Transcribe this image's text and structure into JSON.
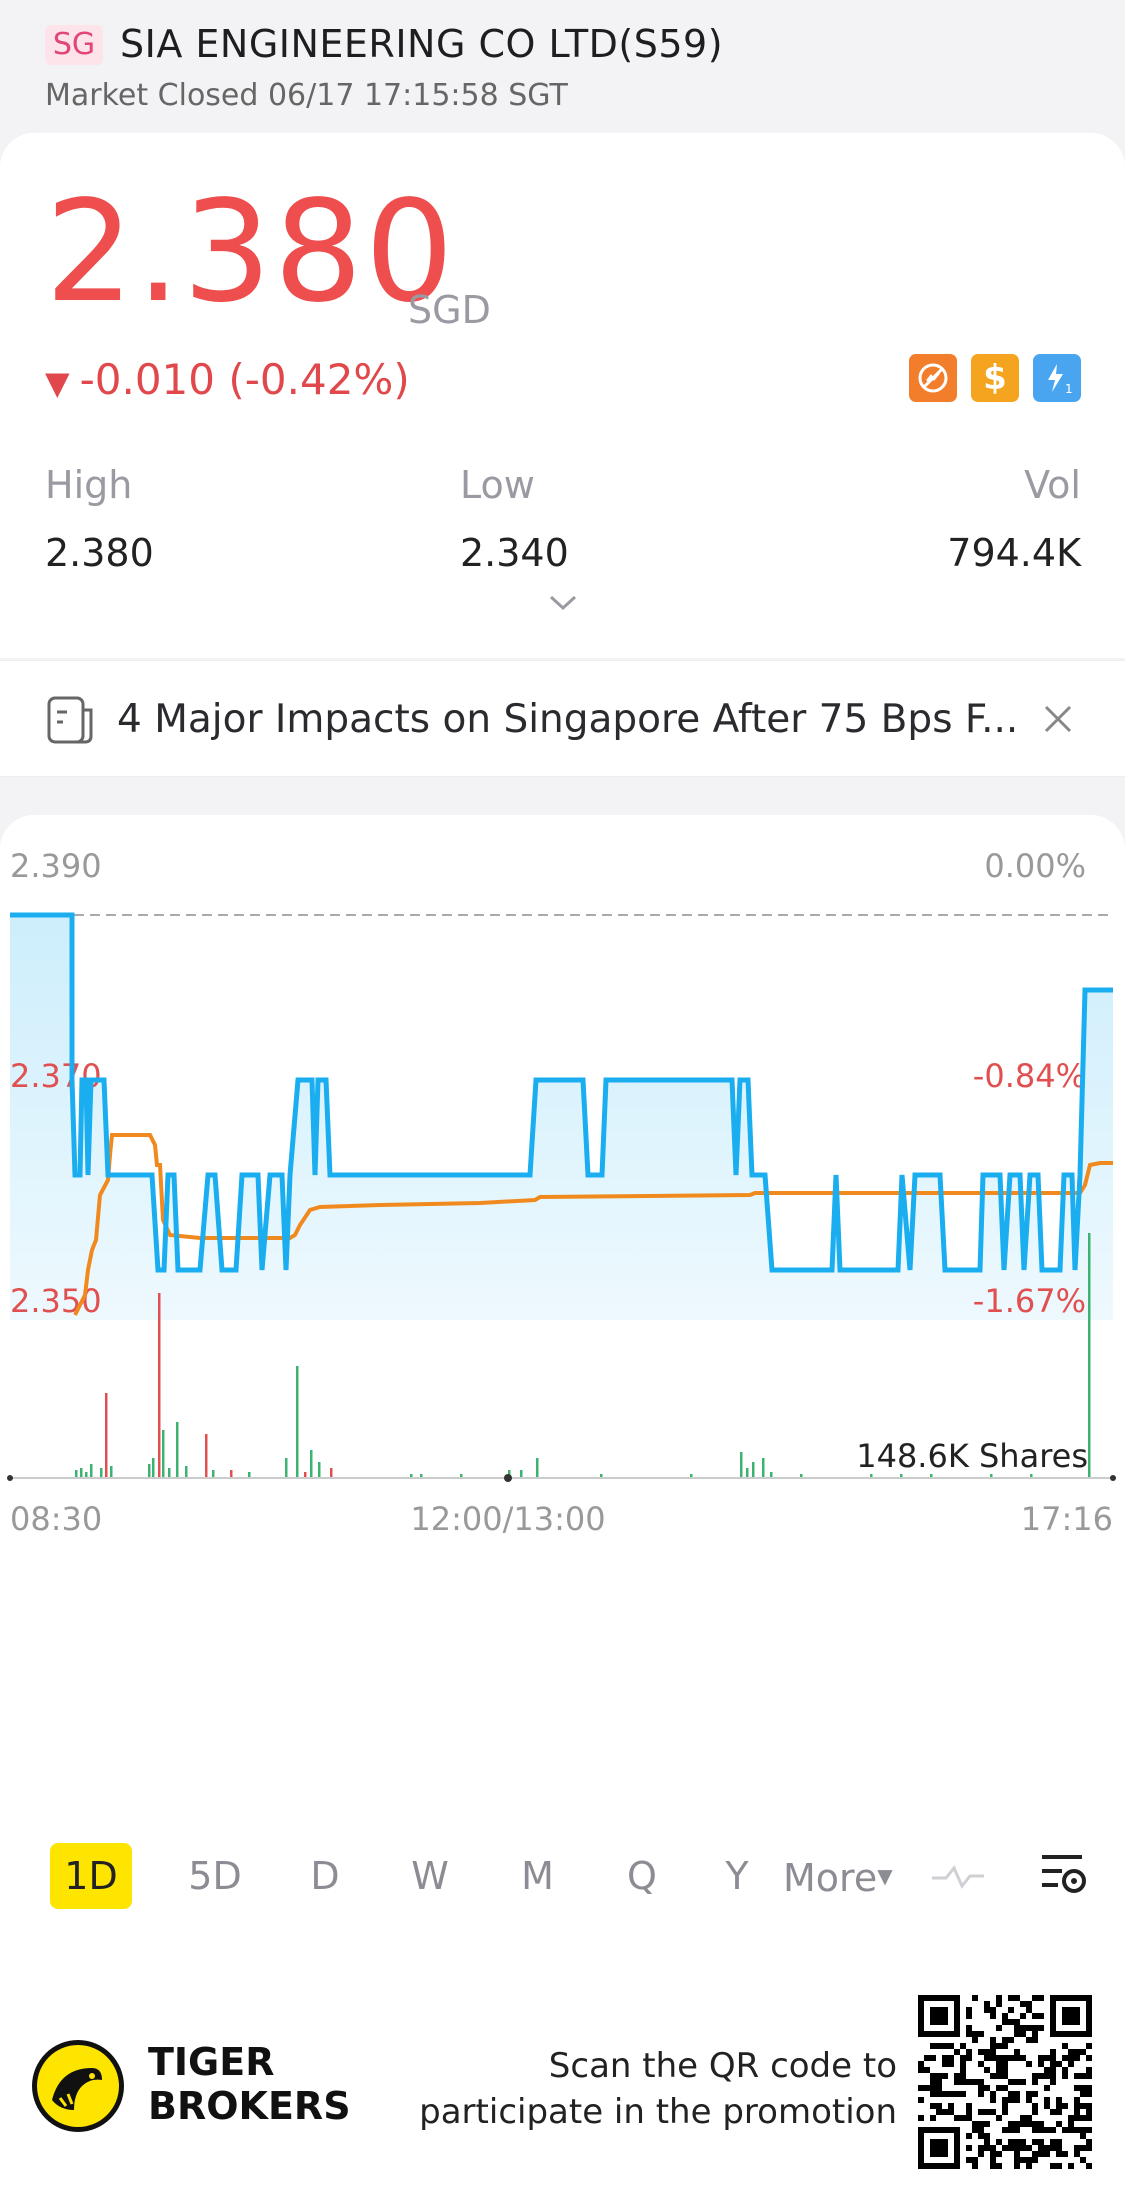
{
  "header": {
    "exchange_badge": "SG",
    "title": "SIA ENGINEERING CO LTD(S59)",
    "status": "Market Closed 06/17 17:15:58 SGT"
  },
  "quote": {
    "price": "2.380",
    "currency": "SGD",
    "change": "-0.010 (-0.42%)",
    "change_arrow": "▼",
    "badges": [
      "no-short-icon",
      "dollar-icon",
      "flash-icon"
    ],
    "stats": {
      "high_label": "High",
      "high_value": "2.380",
      "low_label": "Low",
      "low_value": "2.340",
      "vol_label": "Vol",
      "vol_value": "794.4K"
    }
  },
  "news": {
    "text": "4 Major Impacts on Singapore After 75 Bps F..."
  },
  "chart": {
    "y_top_left": "2.390",
    "y_top_right": "0.00%",
    "y_mid_left": "2.370",
    "y_mid_right": "-0.84%",
    "y_low_left": "2.350",
    "y_low_right": "-1.67%",
    "volume_label": "148.6K Shares",
    "x_start": "08:30",
    "x_mid": "12:00/13:00",
    "x_end": "17:16"
  },
  "timeframes": [
    "1D",
    "5D",
    "D",
    "W",
    "M",
    "Q",
    "Y",
    "More"
  ],
  "active_timeframe": "1D",
  "footer": {
    "brand_line1": "TIGER",
    "brand_line2": "BROKERS",
    "promo_line1": "Scan the QR code to",
    "promo_line2": "participate in the promotion"
  },
  "colors": {
    "price_red": "#ee4e4e",
    "line_blue": "#1aaef0",
    "avg_orange": "#f08a1e",
    "vol_red": "#e05050",
    "vol_green": "#3cb371",
    "active_tab": "#fee500"
  },
  "chart_data": {
    "type": "line",
    "ylim": [
      2.35,
      2.39
    ],
    "x_labels": [
      "08:30",
      "12:00/13:00",
      "17:16"
    ],
    "previous_close": 2.39,
    "series": []
  }
}
